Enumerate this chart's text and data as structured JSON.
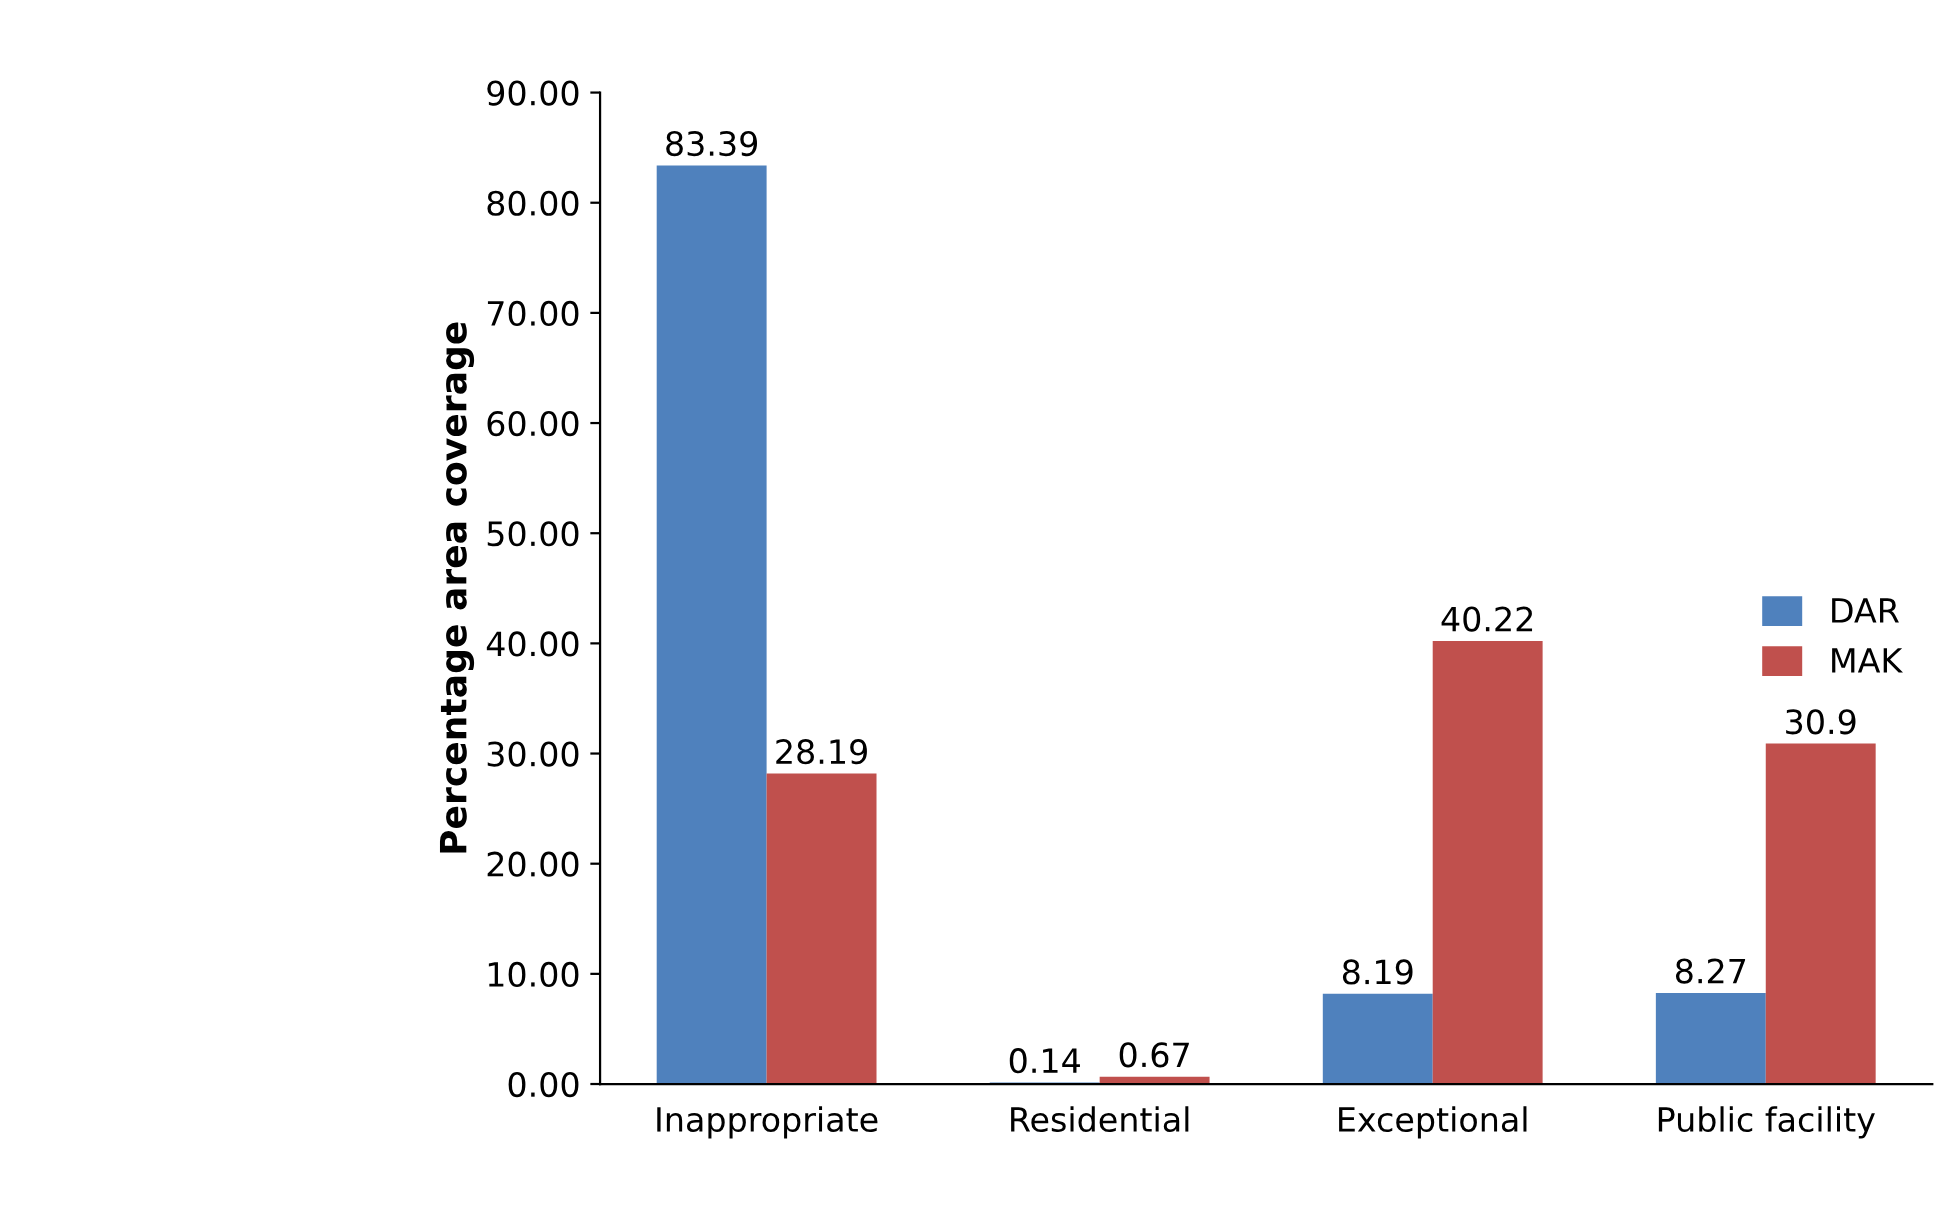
{
  "chart_data": {
    "type": "bar",
    "ylabel": "Percentage area coverage",
    "categories": [
      "Inappropriate",
      "Residential",
      "Exceptional",
      "Public facility"
    ],
    "series": [
      {
        "name": "DAR",
        "color": "#4f81bd",
        "values": [
          83.39,
          0.14,
          8.19,
          8.27
        ]
      },
      {
        "name": "MAK",
        "color": "#c0504d",
        "values": [
          28.19,
          0.67,
          40.22,
          30.9
        ]
      }
    ],
    "ylim": [
      0,
      90
    ],
    "yticks": [
      {
        "value": 0,
        "label": "0.00"
      },
      {
        "value": 10,
        "label": "10.00"
      },
      {
        "value": 20,
        "label": "20.00"
      },
      {
        "value": 30,
        "label": "30.00"
      },
      {
        "value": 40,
        "label": "40.00"
      },
      {
        "value": 50,
        "label": "50.00"
      },
      {
        "value": 60,
        "label": "60.00"
      },
      {
        "value": 70,
        "label": "70.00"
      },
      {
        "value": 80,
        "label": "80.00"
      },
      {
        "value": 90,
        "label": "90.00"
      }
    ],
    "data_labels": true,
    "grid": false,
    "legend": "right"
  }
}
